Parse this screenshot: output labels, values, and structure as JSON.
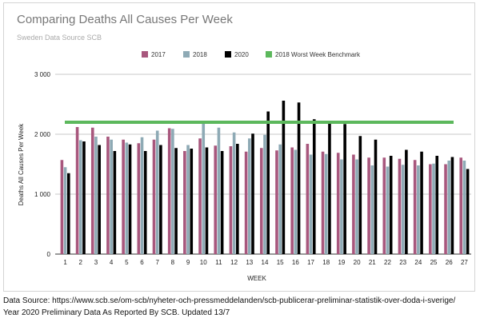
{
  "chart_data": {
    "type": "bar",
    "title": "Comparing Deaths All Causes Per Week",
    "subtitle": "Sweden Data Source SCB",
    "xlabel": "WEEK",
    "ylabel": "Deaths All Causes Per Week",
    "ylim": [
      0,
      3000
    ],
    "yticks": [
      0,
      1000,
      2000,
      3000
    ],
    "ytick_labels": [
      "0",
      "1 000",
      "2 000",
      "3 000"
    ],
    "grid": true,
    "legend_position": "top",
    "categories": [
      "1",
      "2",
      "3",
      "4",
      "5",
      "6",
      "7",
      "8",
      "9",
      "10",
      "11",
      "12",
      "13",
      "14",
      "15",
      "16",
      "17",
      "18",
      "19",
      "20",
      "21",
      "22",
      "23",
      "24",
      "25",
      "26",
      "27"
    ],
    "series": [
      {
        "name": "2017",
        "color": "#a8577d",
        "values": [
          1570,
          2120,
          2110,
          1960,
          1910,
          1850,
          1910,
          2100,
          1720,
          1930,
          1810,
          1800,
          1710,
          1770,
          1730,
          1780,
          1840,
          1710,
          1690,
          1660,
          1610,
          1610,
          1590,
          1570,
          1500,
          1500,
          1610
        ]
      },
      {
        "name": "2018",
        "color": "#8eaab5",
        "values": [
          1450,
          1900,
          1960,
          1910,
          1860,
          1950,
          2060,
          2090,
          1820,
          2190,
          2110,
          2030,
          1930,
          1990,
          1830,
          1740,
          1660,
          1670,
          1580,
          1580,
          1480,
          1460,
          1490,
          1480,
          1510,
          1560,
          1560
        ]
      },
      {
        "name": "2020",
        "color": "#000000",
        "values": [
          1350,
          1880,
          1820,
          1720,
          1830,
          1720,
          1820,
          1770,
          1760,
          1780,
          1720,
          1840,
          2010,
          2380,
          2560,
          2530,
          2250,
          2210,
          2170,
          1970,
          1910,
          1640,
          1740,
          1710,
          1640,
          1620,
          1420
        ]
      }
    ],
    "benchmark": {
      "name": "2018 Worst Week Benchmark",
      "value": 2200,
      "color": "#5cb85c"
    }
  },
  "footer": {
    "line1": "Data Source: https://www.scb.se/om-scb/nyheter-och-pressmeddelanden/scb-publicerar-preliminar-statistik-over-doda-i-sverige/",
    "line2": "Year 2020 Preliminary Data As Reported By SCB. Updated 13/7"
  }
}
